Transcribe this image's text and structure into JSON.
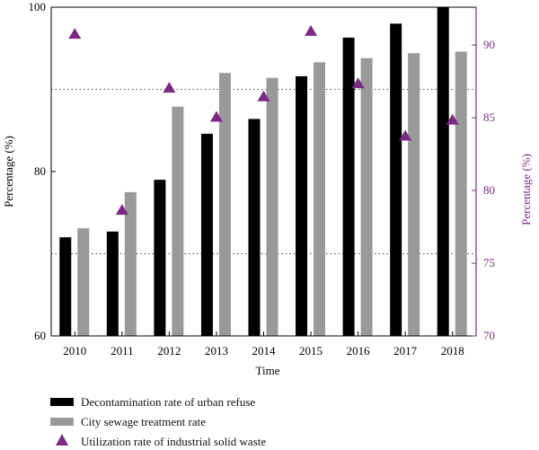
{
  "chart_data": {
    "type": "bar",
    "categories": [
      "2010",
      "2011",
      "2012",
      "2013",
      "2014",
      "2015",
      "2016",
      "2017",
      "2018"
    ],
    "xlabel": "Time",
    "ylabel_left": "Percentage (%)",
    "ylabel_right": "Percentage (%)",
    "ylim_left": [
      60,
      100
    ],
    "yticks_left": [
      60,
      80,
      100
    ],
    "ylim_right": [
      70,
      92.6
    ],
    "yticks_right": [
      70,
      75,
      80,
      85,
      90
    ],
    "grid": "dotted horizontal at 70 and 90 (left axis)",
    "legend_position": "bottom-left",
    "series": [
      {
        "name": "Decontamination rate of urban refuse",
        "type": "bar",
        "axis": "left",
        "color": "#000000",
        "values": [
          72.0,
          72.7,
          79.0,
          84.6,
          86.4,
          91.6,
          96.3,
          98.0,
          100.0
        ]
      },
      {
        "name": "City sewage treatment rate",
        "type": "bar",
        "axis": "left",
        "color": "#999999",
        "values": [
          73.1,
          77.5,
          87.9,
          92.0,
          91.4,
          93.3,
          93.8,
          94.4,
          94.6
        ]
      },
      {
        "name": "Utilization rate of industrial solid waste",
        "type": "scatter",
        "marker": "triangle",
        "axis": "right",
        "color": "#7b2a83",
        "values": [
          90.8,
          78.7,
          87.1,
          85.1,
          86.5,
          91.0,
          87.4,
          83.8,
          84.9
        ]
      }
    ]
  },
  "colors": {
    "right_axis": "#7b2a83",
    "bar_black": "#000000",
    "bar_gray": "#999999"
  }
}
